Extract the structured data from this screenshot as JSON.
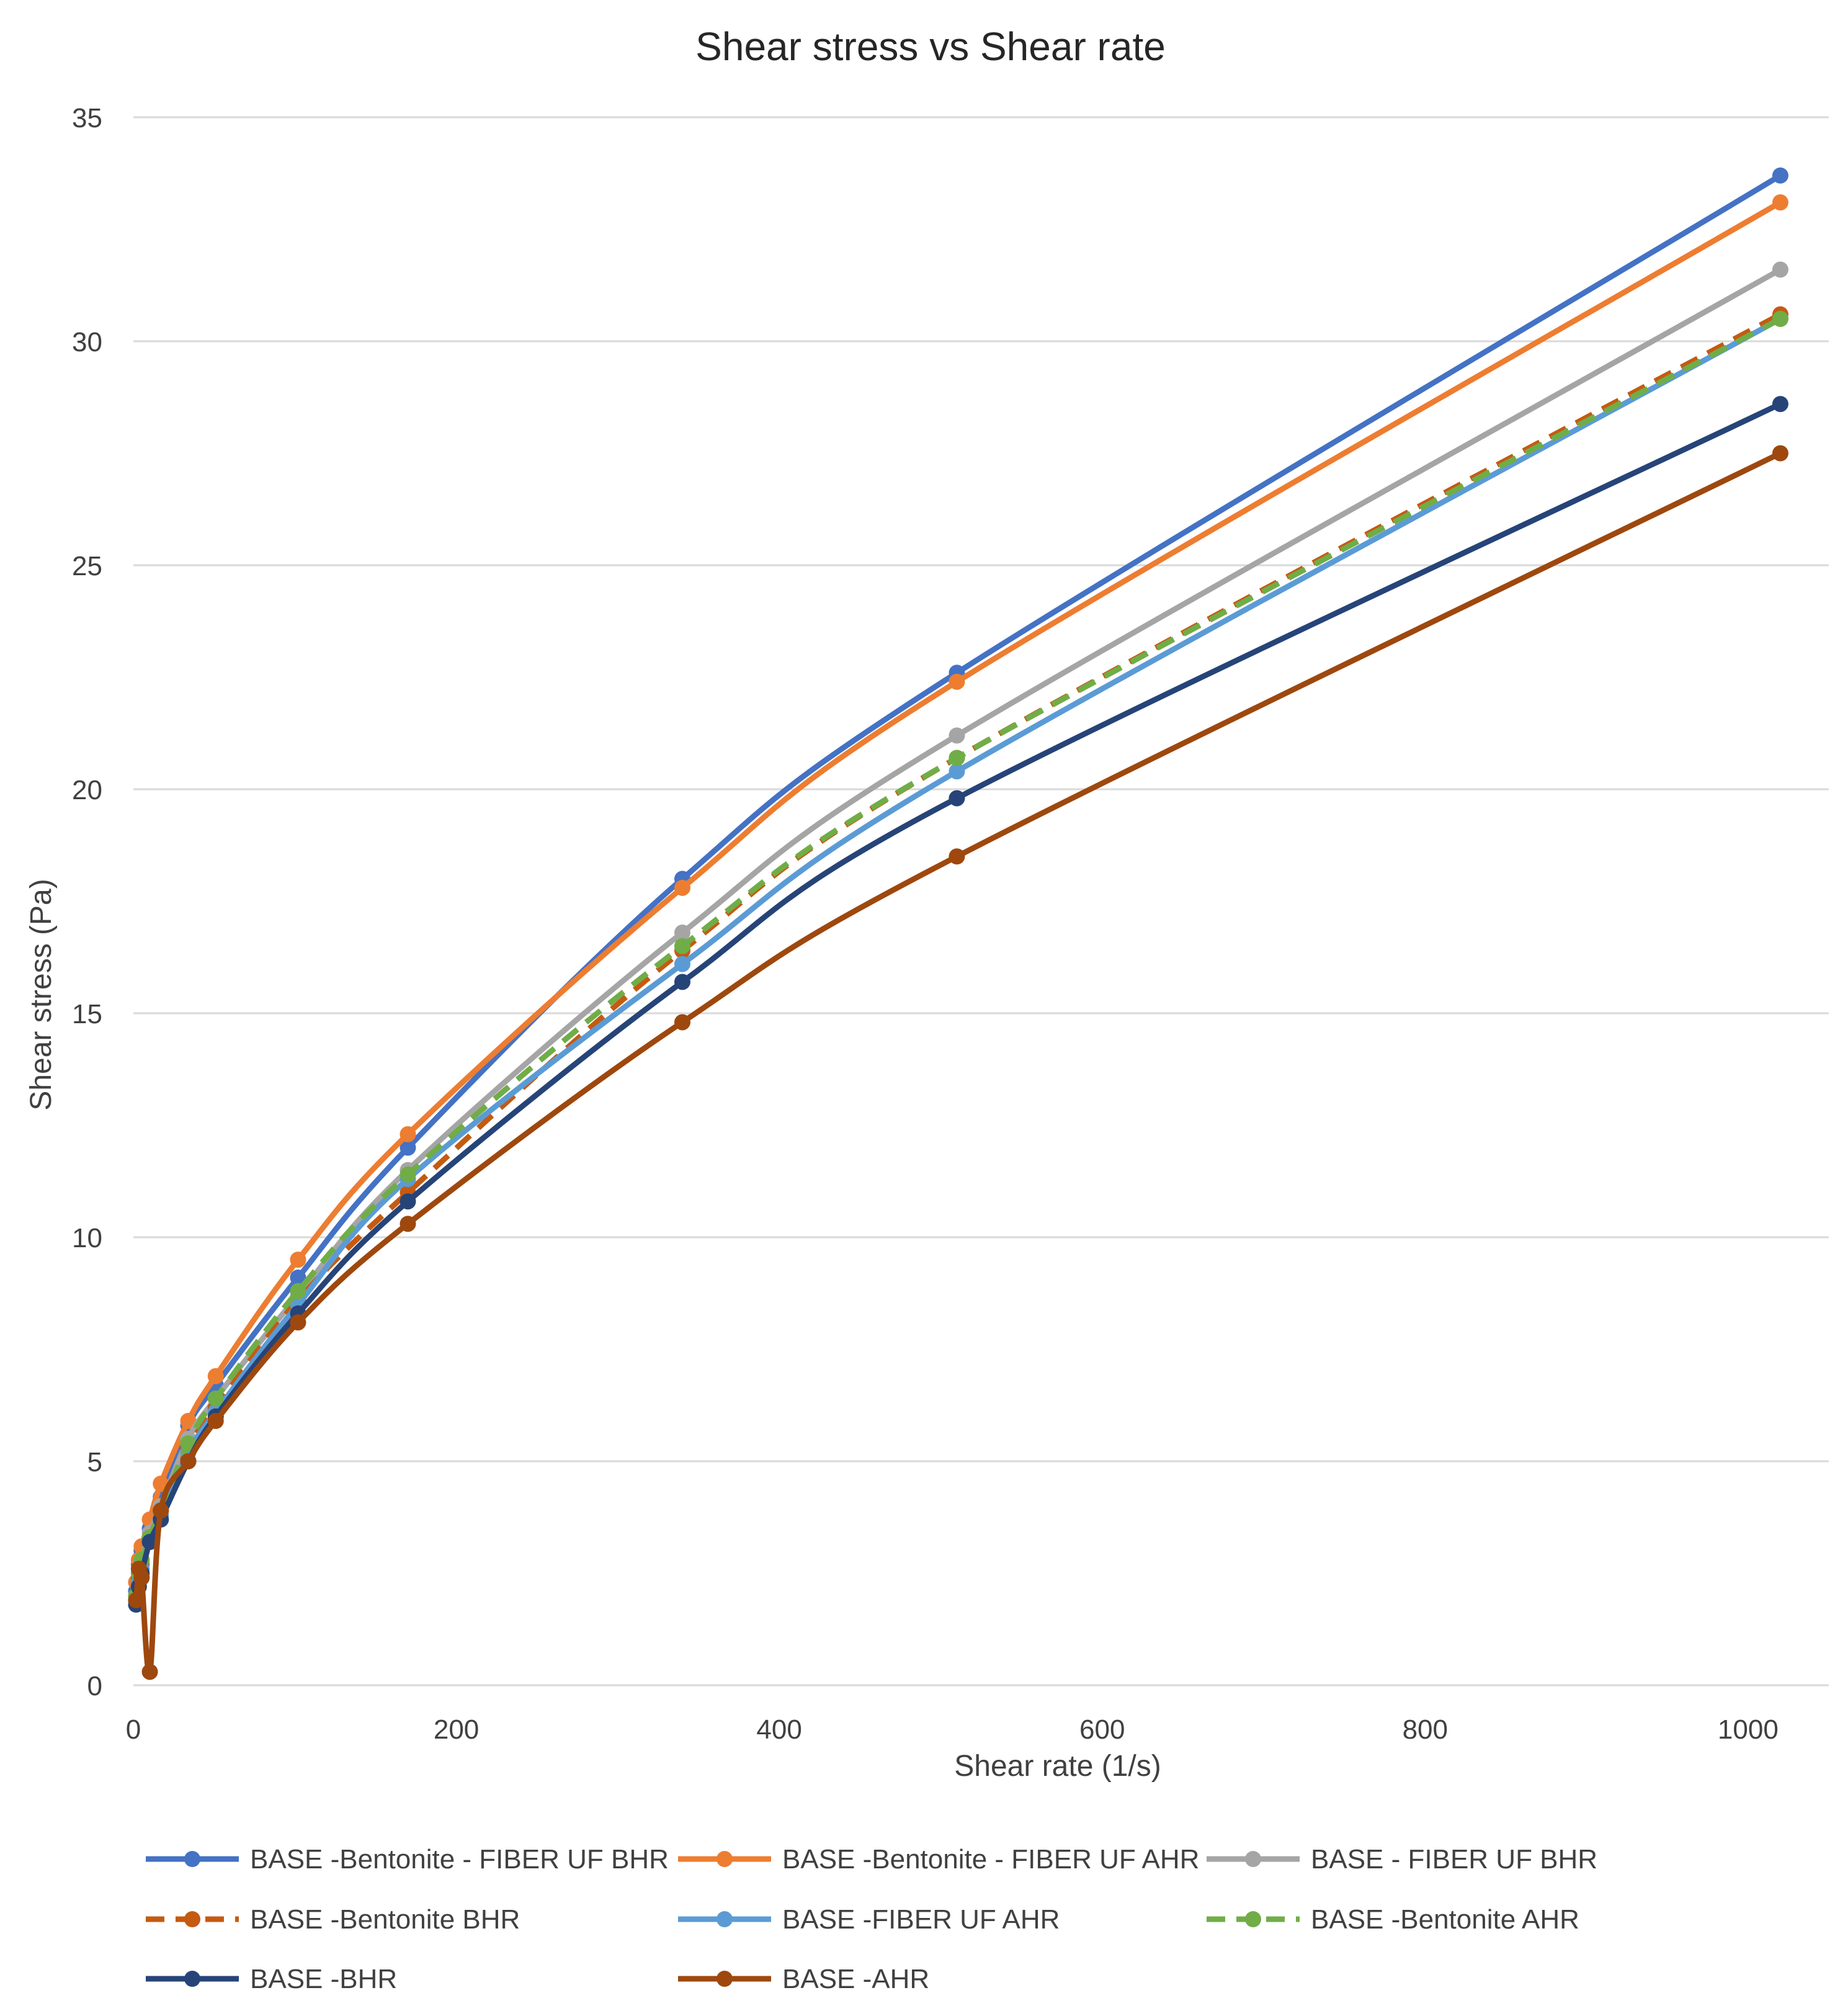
{
  "chart_data": {
    "type": "line",
    "title": "Shear stress vs Shear rate",
    "xlabel": "Shear rate (1/s)",
    "ylabel": "Shear stress (Pa)",
    "xlim": [
      0,
      1050
    ],
    "ylim": [
      0,
      35
    ],
    "xticks": [
      0,
      200,
      400,
      600,
      800,
      1000
    ],
    "yticks": [
      0,
      5,
      10,
      15,
      20,
      25,
      30,
      35
    ],
    "grid": true,
    "legend_position": "bottom",
    "x": [
      1.7,
      3.4,
      5.1,
      10.2,
      17,
      34,
      51,
      102,
      170,
      340,
      510,
      1020
    ],
    "series": [
      {
        "name": "BASE -Bentonite - FIBER UF BHR",
        "color": "#4472C4",
        "dash": false,
        "values": [
          2.1,
          2.7,
          3.0,
          3.5,
          4.2,
          5.8,
          6.7,
          9.1,
          12.0,
          18.0,
          22.6,
          33.7
        ]
      },
      {
        "name": "BASE -Bentonite - FIBER UF AHR",
        "color": "#ED7D31",
        "dash": false,
        "values": [
          2.3,
          2.8,
          3.1,
          3.7,
          4.5,
          5.9,
          6.9,
          9.5,
          12.3,
          17.8,
          22.4,
          33.1
        ]
      },
      {
        "name": "BASE - FIBER UF BHR",
        "color": "#A5A5A5",
        "dash": false,
        "values": [
          2.0,
          2.5,
          2.8,
          3.4,
          4.0,
          5.5,
          6.4,
          8.7,
          11.5,
          16.8,
          21.2,
          31.6
        ]
      },
      {
        "name": "BASE -Bentonite BHR",
        "color": "#C55A11",
        "dash": true,
        "values": [
          1.9,
          2.4,
          2.7,
          3.3,
          3.9,
          5.3,
          6.2,
          8.6,
          11.0,
          16.4,
          20.7,
          30.6
        ]
      },
      {
        "name": "BASE -FIBER UF AHR",
        "color": "#5B9BD5",
        "dash": false,
        "values": [
          1.9,
          2.3,
          2.6,
          3.2,
          3.8,
          5.2,
          6.1,
          8.5,
          11.3,
          16.1,
          20.4,
          30.5
        ]
      },
      {
        "name": "BASE -Bentonite AHR",
        "color": "#70AD47",
        "dash": true,
        "values": [
          2.0,
          2.5,
          2.8,
          3.3,
          3.9,
          5.4,
          6.4,
          8.8,
          11.4,
          16.5,
          20.7,
          30.5
        ]
      },
      {
        "name": "BASE -BHR",
        "color": "#264478",
        "dash": false,
        "values": [
          1.8,
          2.2,
          2.5,
          3.2,
          3.7,
          5.0,
          6.0,
          8.3,
          10.8,
          15.7,
          19.8,
          28.6
        ]
      },
      {
        "name": "BASE -AHR",
        "color": "#9E480E",
        "dash": false,
        "values": [
          1.9,
          2.6,
          2.4,
          0.3,
          3.9,
          5.0,
          5.9,
          8.1,
          10.3,
          14.8,
          18.5,
          27.5
        ]
      }
    ]
  }
}
